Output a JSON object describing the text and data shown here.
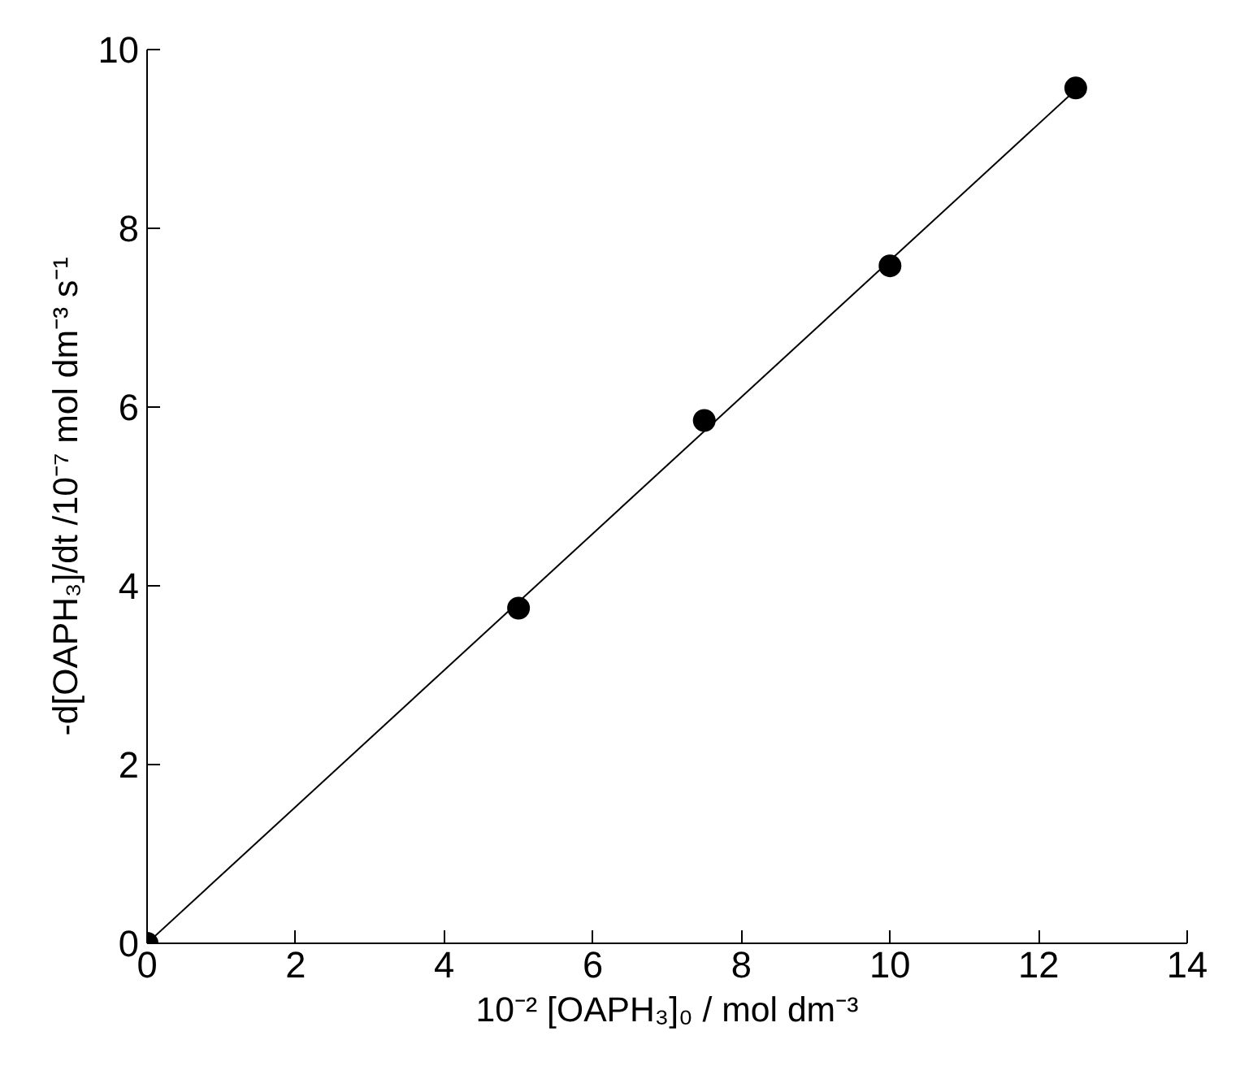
{
  "chart_data": {
    "type": "scatter",
    "xlabel": "10⁻² [OAPH₃]₀ / mol dm⁻³",
    "ylabel": "-d[OAPH₃]/dt /10⁻⁷ mol dm⁻³ s⁻¹",
    "series": [
      {
        "color": "#000000",
        "x": [
          0,
          5,
          7.5,
          10,
          12.5
        ],
        "values": [
          0,
          3.75,
          5.85,
          7.58,
          9.57
        ],
        "marker": "circle"
      },
      {
        "type": "line",
        "color": "#000000",
        "x": [
          0,
          12.5
        ],
        "values": [
          0,
          9.55
        ],
        "line_style": "solid"
      }
    ],
    "xlim": [
      0,
      14
    ],
    "ylim": [
      0,
      10
    ],
    "xticks": [
      0,
      2,
      4,
      6,
      8,
      10,
      12,
      14
    ],
    "yticks": [
      0,
      2,
      4,
      6,
      8,
      10
    ],
    "grid": false
  }
}
